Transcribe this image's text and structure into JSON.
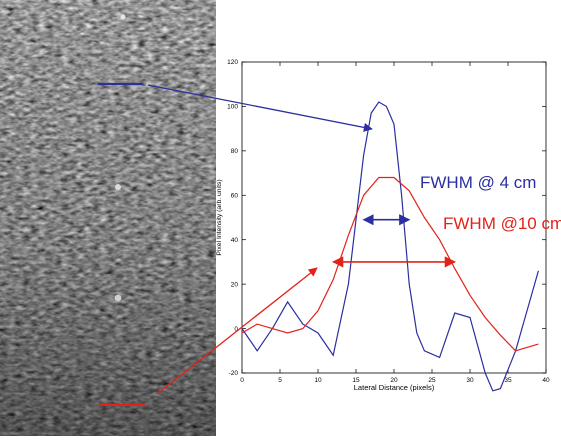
{
  "colors": {
    "blue": "#2b2fa0",
    "red": "#e2231a",
    "axis": "#000000"
  },
  "ultrasound_image": {
    "description_icon": "speckle-ultrasound-image"
  },
  "annotations": {
    "fwhm_4cm": "FWHM @ 4 cm",
    "fwhm_10cm": "FWHM @10 cm"
  },
  "chart_data": {
    "type": "line",
    "xlabel": "Lateral Distance (pixels)",
    "ylabel": "Pixel Intensity (arb. units)",
    "xlim": [
      0,
      40
    ],
    "ylim": [
      -20,
      120
    ],
    "xticks": [
      0,
      5,
      10,
      15,
      20,
      25,
      30,
      35,
      40
    ],
    "yticks": [
      -20,
      0,
      20,
      40,
      60,
      80,
      100,
      120
    ],
    "grid": false,
    "series": [
      {
        "color": "#2b2fa0",
        "x": [
          0,
          2,
          4,
          6,
          8,
          10,
          12,
          14,
          16,
          17,
          18,
          19,
          20,
          21,
          22,
          23,
          24,
          26,
          28,
          30,
          32,
          33,
          34,
          36,
          38,
          39
        ],
        "y": [
          0,
          -10,
          0,
          12,
          2,
          -2,
          -12,
          20,
          78,
          97,
          102,
          100,
          92,
          60,
          20,
          -2,
          -10,
          -13,
          7,
          5,
          -20,
          -28,
          -27,
          -10,
          14,
          26
        ]
      },
      {
        "color": "#e2231a",
        "x": [
          0,
          2,
          4,
          6,
          8,
          10,
          12,
          14,
          16,
          18,
          20,
          22,
          24,
          26,
          28,
          30,
          32,
          34,
          36,
          38,
          39
        ],
        "y": [
          -2,
          2,
          0,
          -2,
          0,
          8,
          22,
          42,
          60,
          68,
          68,
          62,
          50,
          40,
          27,
          15,
          5,
          -3,
          -10,
          -8,
          -7
        ]
      }
    ],
    "fwhm_markers": [
      {
        "color": "#2b2fa0",
        "x_start": 16.0,
        "x_end": 22.0,
        "y": 49
      },
      {
        "color": "#e2231a",
        "x_start": 12.0,
        "x_end": 28.0,
        "y": 30
      }
    ]
  }
}
